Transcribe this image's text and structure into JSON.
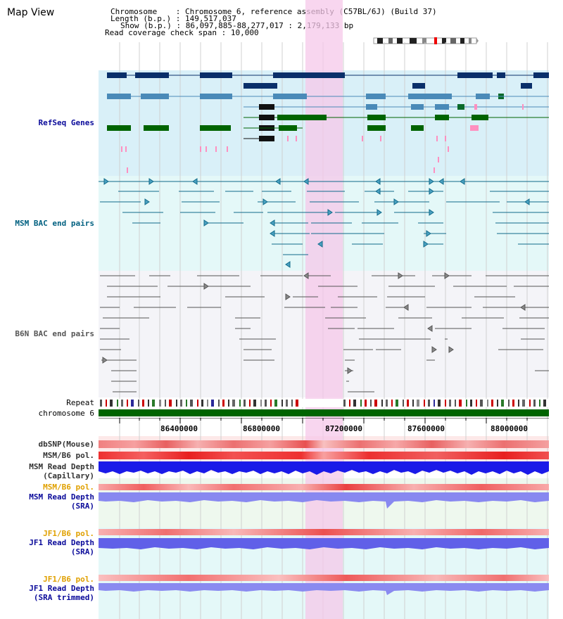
{
  "view_title": "Map View",
  "info": {
    "chromosome_label": "Chromosome",
    "chromosome_value": "Chromosome 6, reference assembly (C57BL/6J) (Build 37)",
    "length_label": "Length (b.p.)",
    "length_value": "149,517,037",
    "show_label": "Show (b.p.)",
    "show_value": "86,097,885-88,277,017 : 2,179,133 bp",
    "span_label": "Read coverage check span",
    "span_value": "10,000"
  },
  "tracks": {
    "refseq": "RefSeq Genes",
    "msm_bac": "MSM BAC end pairs",
    "b6n_bac": "B6N BAC end pairs",
    "repeat": "Repeat",
    "chromosome": "chromosome 6",
    "dbsnp": "dbSNP(Mouse)",
    "msm_pol": "MSM/B6 pol.",
    "msm_depth_cap_1": "MSM Read Depth",
    "msm_depth_cap_2": "(Capillary)",
    "msm_pol_sra": "MSM/B6 pol.",
    "msm_depth_sra_1": "MSM Read Depth",
    "msm_depth_sra_2": "(SRA)",
    "jf1_pol": "JF1/B6 pol.",
    "jf1_depth_1": "JF1 Read Depth",
    "jf1_depth_2": "(SRA)",
    "jf1_pol_trim": "JF1/B6 pol.",
    "jf1_trim_1": "JF1 Read Depth",
    "jf1_trim_2": "(SRA trimmed)"
  },
  "axis": {
    "ticks": [
      "86400000",
      "86800000",
      "87200000",
      "87600000",
      "88000000"
    ]
  },
  "colors": {
    "refseq_bg": "#d9f0f8",
    "msm_bg": "#e4f8f8",
    "b6n_bg": "#f4f4f8",
    "highlight": "#f8d8f0",
    "chromosome": "#006400",
    "msm_label": "#006080",
    "refseq_label": "#0a0a9a",
    "orange_label": "#e0a000"
  }
}
